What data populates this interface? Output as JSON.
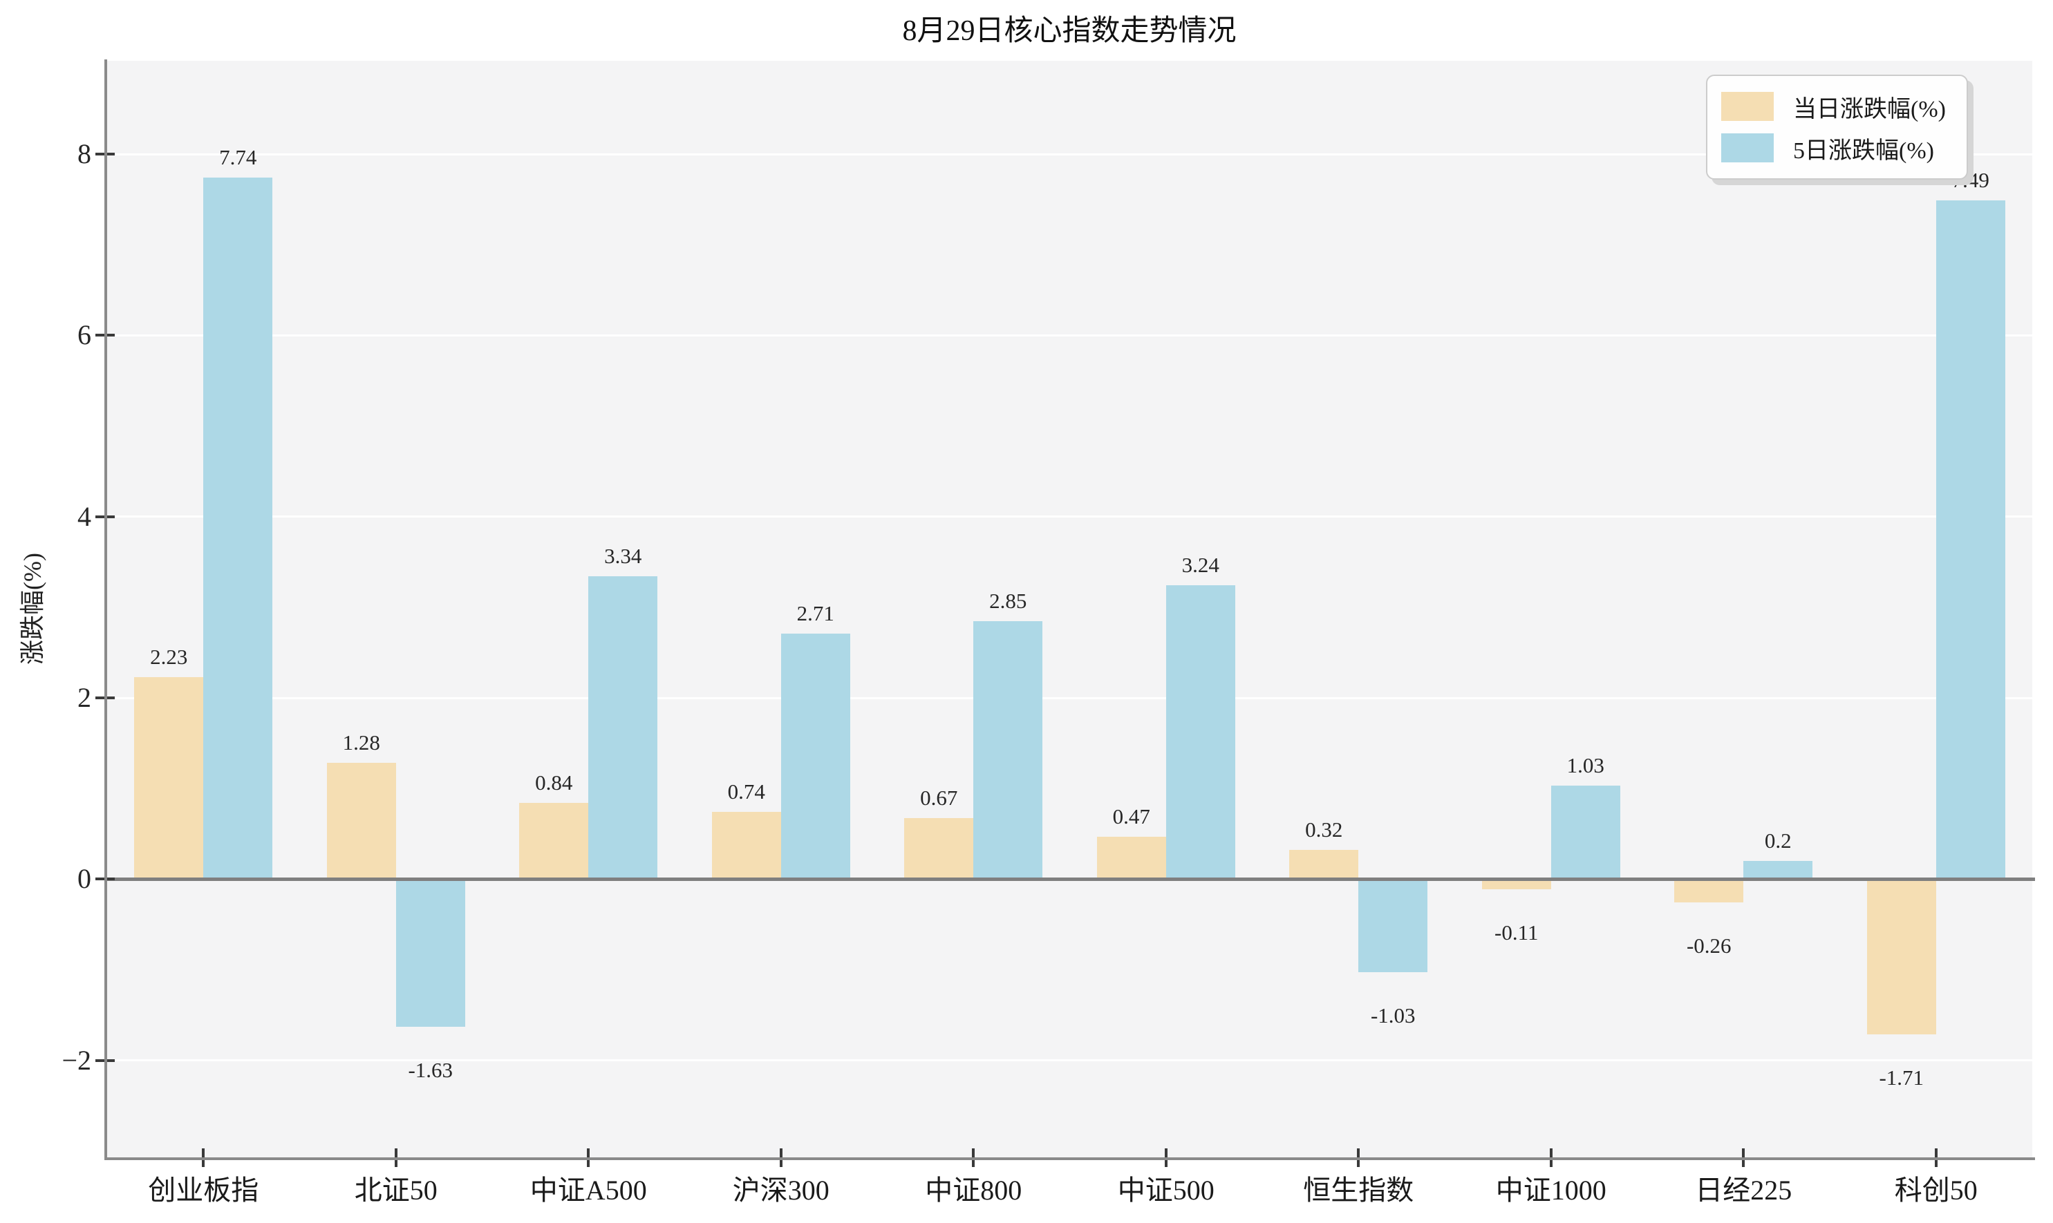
{
  "chart_data": {
    "type": "bar",
    "title": "8月29日核心指数走势情况",
    "xlabel": "",
    "ylabel": "涨跌幅(%)",
    "categories": [
      "创业板指",
      "北证50",
      "中证A500",
      "沪深300",
      "中证800",
      "中证500",
      "恒生指数",
      "中证1000",
      "日经225",
      "科创50"
    ],
    "series": [
      {
        "name": "当日涨跌幅(%)",
        "color": "#F5DEB3",
        "values": [
          2.23,
          1.28,
          0.84,
          0.74,
          0.67,
          0.47,
          0.32,
          -0.11,
          -0.26,
          -1.71
        ]
      },
      {
        "name": "5日涨跌幅(%)",
        "color": "#ADD8E6",
        "values": [
          7.74,
          -1.63,
          3.34,
          2.71,
          2.85,
          3.24,
          -1.03,
          1.03,
          0.2,
          7.49
        ]
      }
    ],
    "yticks": [
      -2,
      0,
      2,
      4,
      6,
      8
    ],
    "ylim": [
      -3.07,
      9.03
    ],
    "grid": "horizontal-white-on-gray",
    "legend_position": "top-right",
    "bar_value_labels": true
  },
  "colors": {
    "figure_background": "#ffffff",
    "plot_background": "#f4f4f5",
    "gridline": "#ffffff",
    "zero_line": "#7f7f7f",
    "spine": "#8a8a8a",
    "series_daily": "#F5DEB3",
    "series_5day": "#ADD8E6",
    "text": "#1a1a1a"
  }
}
